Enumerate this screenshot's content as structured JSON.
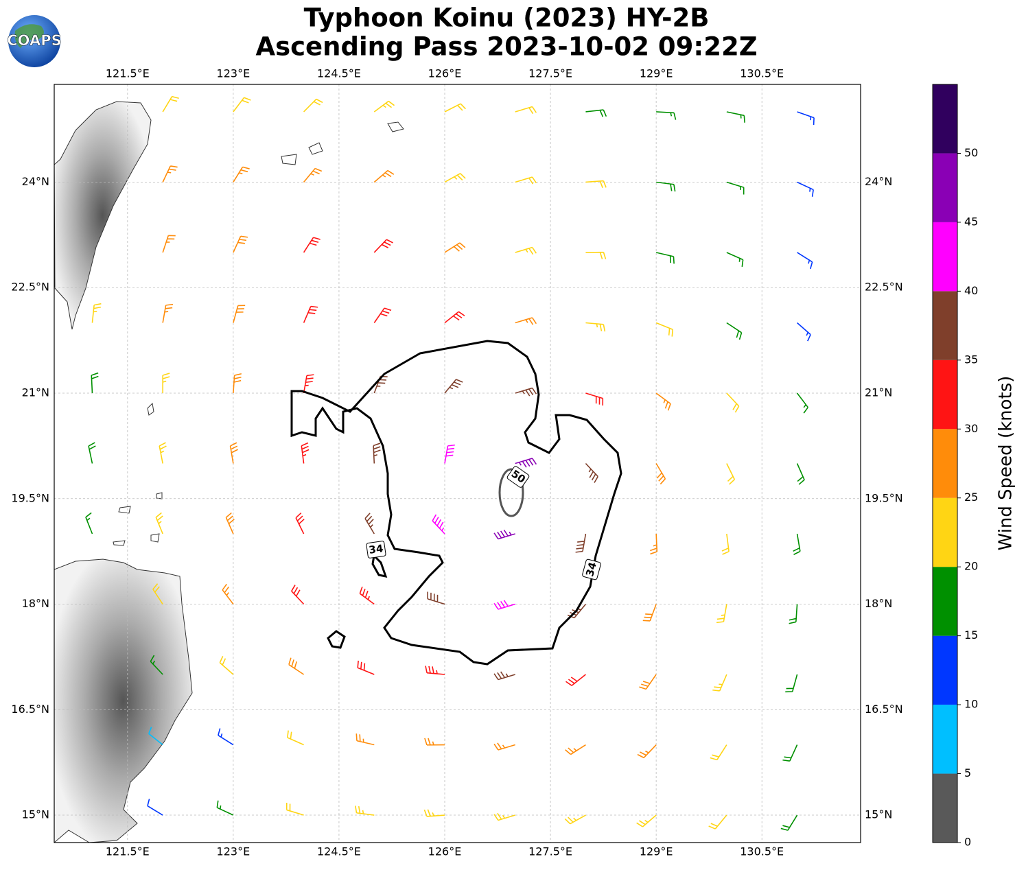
{
  "logo": "COAPS",
  "title": [
    "Typhoon Koinu (2023) HY-2B",
    "Ascending Pass 2023-10-02 09:22Z"
  ],
  "map": {
    "xlim": [
      120.46,
      131.9
    ],
    "ylim": [
      14.61,
      25.39
    ],
    "xticks": [
      {
        "value": 121.5,
        "label": "121.5°E"
      },
      {
        "value": 123,
        "label": "123°E"
      },
      {
        "value": 124.5,
        "label": "124.5°E"
      },
      {
        "value": 126,
        "label": "126°E"
      },
      {
        "value": 127.5,
        "label": "127.5°E"
      },
      {
        "value": 129,
        "label": "129°E"
      },
      {
        "value": 130.5,
        "label": "130.5°E"
      }
    ],
    "yticks": [
      {
        "value": 15,
        "label": "15°N"
      },
      {
        "value": 16.5,
        "label": "16.5°N"
      },
      {
        "value": 18,
        "label": "18°N"
      },
      {
        "value": 19.5,
        "label": "19.5°N"
      },
      {
        "value": 21,
        "label": "21°N"
      },
      {
        "value": 22.5,
        "label": "22.5°N"
      },
      {
        "value": 24,
        "label": "24°N"
      }
    ],
    "grid": true
  },
  "wind": {
    "lon": [
      121,
      122,
      123,
      124,
      125,
      126,
      127,
      128,
      129,
      130,
      131
    ],
    "lat": [
      25,
      24,
      23,
      22,
      21,
      20,
      19,
      18,
      17,
      16,
      15
    ],
    "speed": [
      [
        null,
        22,
        22,
        22,
        23,
        22,
        22,
        18,
        17,
        17,
        13
      ],
      [
        null,
        27,
        26,
        27,
        27,
        24,
        22,
        22,
        18,
        17,
        13
      ],
      [
        null,
        27,
        28,
        30,
        31,
        28,
        24,
        22,
        18,
        16,
        13
      ],
      [
        23,
        26,
        28,
        31,
        32,
        31,
        27,
        24,
        22,
        18,
        14
      ],
      [
        18,
        24,
        28,
        33,
        36,
        37,
        36,
        31,
        26,
        21,
        17
      ],
      [
        18,
        24,
        28,
        33,
        37,
        42,
        47,
        37,
        28,
        22,
        18
      ],
      [
        16,
        23,
        28,
        32,
        36,
        44,
        47,
        38,
        27,
        22,
        18
      ],
      [
        null,
        22,
        26,
        31,
        34,
        38,
        41,
        36,
        28,
        23,
        19
      ],
      [
        null,
        17,
        22,
        29,
        32,
        34,
        36,
        32,
        28,
        23,
        19
      ],
      [
        null,
        8,
        13,
        21,
        26,
        27,
        27,
        27,
        27,
        22,
        18
      ],
      [
        null,
        12,
        17,
        21,
        23,
        23,
        24,
        24,
        23,
        21,
        18
      ]
    ]
  },
  "contours": [
    {
      "level": 34
    },
    {
      "level": 50
    }
  ],
  "colorbar": {
    "label": "Wind Speed (knots)",
    "lim": [
      0,
      55
    ],
    "bounds": [
      0,
      5,
      10,
      15,
      20,
      25,
      30,
      35,
      40,
      45,
      50,
      55
    ],
    "colors": [
      "#595959",
      "#00bfff",
      "#0037ff",
      "#009000",
      "#ffd514",
      "#ff8c0a",
      "#ff1414",
      "#7f3f2b",
      "#ff00ff",
      "#8a00b5",
      "#30005e"
    ],
    "ticks": [
      0,
      5,
      10,
      15,
      20,
      25,
      30,
      35,
      40,
      45,
      50
    ]
  }
}
